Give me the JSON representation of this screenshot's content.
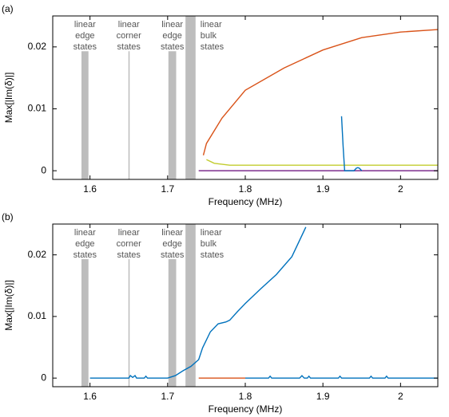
{
  "chart_data": [
    {
      "type": "line",
      "panel_label": "(a)",
      "xlabel": "Frequency (MHz)",
      "ylabel": "Max[|Im(δ)|]",
      "xlim": [
        1.552,
        2.048
      ],
      "ylim": [
        -0.0014,
        0.025
      ],
      "xticks": [
        1.6,
        1.7,
        1.8,
        1.9,
        2
      ],
      "yticks": [
        0,
        0.01,
        0.02
      ],
      "bands": [
        {
          "x": [
            1.589,
            1.598
          ],
          "top": 0.0193,
          "label": [
            "linear",
            "edge",
            "states"
          ]
        },
        {
          "x": [
            1.6495,
            1.6505
          ],
          "top": 0.0193,
          "label": [
            "linear",
            "corner",
            "states"
          ]
        },
        {
          "x": [
            1.701,
            1.711
          ],
          "top": 0.0193,
          "label": [
            "linear",
            "edge",
            "states"
          ]
        },
        {
          "x": [
            1.723,
            1.736
          ],
          "top": 0.025,
          "label": [
            "linear",
            "bulk",
            "states"
          ]
        }
      ],
      "series": [
        {
          "color": "#7e2f8e",
          "x": [
            1.74,
            2.048
          ],
          "values": [
            0,
            0
          ]
        },
        {
          "color": "#c2cc2e",
          "x": [
            1.75,
            1.76,
            1.78,
            1.85,
            2.0,
            2.048
          ],
          "values": [
            0.0018,
            0.0012,
            0.0009,
            0.0009,
            0.0009,
            0.0009
          ]
        },
        {
          "color": "#d95319",
          "x": [
            1.746,
            1.75,
            1.77,
            1.8,
            1.85,
            1.9,
            1.95,
            2.0,
            2.048
          ],
          "values": [
            0.0025,
            0.0044,
            0.0085,
            0.013,
            0.0166,
            0.0195,
            0.0215,
            0.0224,
            0.0228
          ]
        },
        {
          "color": "#0072bd",
          "x": [
            1.924,
            1.926,
            1.928,
            1.94,
            1.943,
            1.945,
            1.947,
            1.95
          ],
          "values": [
            0.0088,
            0.004,
            0,
            0,
            0.0004,
            0.0005,
            0.0004,
            0
          ]
        }
      ]
    },
    {
      "type": "line",
      "panel_label": "(b)",
      "xlabel": "Frequency (MHz)",
      "ylabel": "Max[|Im(δ)|]",
      "xlim": [
        1.552,
        2.048
      ],
      "ylim": [
        -0.0014,
        0.025
      ],
      "xticks": [
        1.6,
        1.7,
        1.8,
        1.9,
        2
      ],
      "yticks": [
        0,
        0.01,
        0.02
      ],
      "bands": [
        {
          "x": [
            1.589,
            1.598
          ],
          "top": 0.0193,
          "label": [
            "linear",
            "edge",
            "states"
          ]
        },
        {
          "x": [
            1.6495,
            1.6505
          ],
          "top": 0.0193,
          "label": [
            "linear",
            "corner",
            "states"
          ]
        },
        {
          "x": [
            1.701,
            1.711
          ],
          "top": 0.0193,
          "label": [
            "linear",
            "edge",
            "states"
          ]
        },
        {
          "x": [
            1.723,
            1.736
          ],
          "top": 0.025,
          "label": [
            "linear",
            "bulk",
            "states"
          ]
        }
      ],
      "series": [
        {
          "color": "#d95319",
          "x": [
            1.74,
            1.8
          ],
          "values": [
            0,
            0
          ]
        },
        {
          "color": "#0072bd",
          "x": [
            1.8,
            1.83,
            1.832,
            1.834,
            1.87,
            1.873,
            1.876,
            1.88,
            1.882,
            1.884,
            1.92,
            1.922,
            1.924,
            1.96,
            1.962,
            1.964,
            1.98,
            1.982,
            1.984,
            2.01,
            2.048
          ],
          "values": [
            0,
            0,
            0.0003,
            0,
            0,
            0.0004,
            0,
            0,
            0.0003,
            0,
            0,
            0.0003,
            0,
            0,
            0.0003,
            0,
            0,
            0.0003,
            0,
            0,
            0
          ]
        },
        {
          "color": "#0072bd",
          "x": [
            1.6,
            1.65,
            1.652,
            1.655,
            1.658,
            1.66,
            1.67,
            1.672,
            1.674,
            1.7,
            1.71,
            1.72,
            1.73,
            1.74,
            1.745,
            1.755,
            1.765,
            1.775,
            1.78,
            1.79,
            1.8,
            1.82,
            1.84,
            1.86,
            1.878
          ],
          "values": [
            0,
            0,
            0.0004,
            0.0001,
            0.0004,
            0,
            0,
            0.0003,
            0,
            0,
            0.0004,
            0.0012,
            0.0019,
            0.003,
            0.0049,
            0.0075,
            0.0088,
            0.0091,
            0.0094,
            0.0108,
            0.0121,
            0.0145,
            0.0168,
            0.0197,
            0.0245
          ]
        }
      ]
    }
  ]
}
